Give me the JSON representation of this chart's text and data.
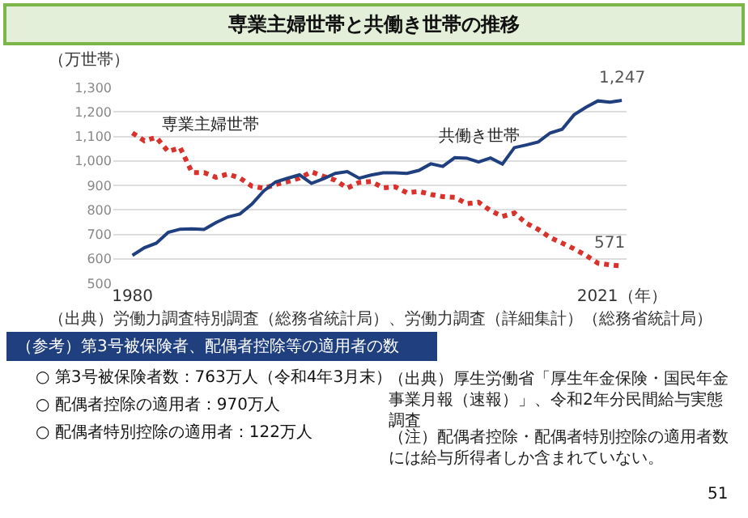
{
  "chart_data": {
    "type": "line",
    "title": "専業主婦世帯と共働き世帯の推移",
    "ylabel": "（万世帯）",
    "x": [
      1980,
      1981,
      1982,
      1983,
      1984,
      1985,
      1986,
      1987,
      1988,
      1989,
      1990,
      1991,
      1992,
      1993,
      1994,
      1995,
      1996,
      1997,
      1998,
      1999,
      2000,
      2001,
      2002,
      2003,
      2004,
      2005,
      2006,
      2007,
      2008,
      2009,
      2010,
      2011,
      2012,
      2013,
      2014,
      2015,
      2016,
      2017,
      2018,
      2019,
      2020,
      2021
    ],
    "series": [
      {
        "name": "専業主婦世帯",
        "color": "#d9312b",
        "line_style": "dotted",
        "values": [
          1114,
          1082,
          1096,
          1038,
          1054,
          952,
          952,
          933,
          946,
          930,
          897,
          888,
          903,
          915,
          930,
          955,
          937,
          921,
          889,
          912,
          916,
          890,
          894,
          870,
          875,
          863,
          854,
          851,
          825,
          831,
          797,
          773,
          787,
          745,
          720,
          687,
          664,
          641,
          614,
          582,
          575,
          571
        ],
        "value_labels": [
          null,
          null,
          null,
          null,
          null,
          null,
          null,
          null,
          null,
          null,
          null,
          null,
          null,
          null,
          null,
          null,
          null,
          null,
          null,
          null,
          null,
          null,
          null,
          null,
          null,
          null,
          null,
          null,
          null,
          null,
          null,
          null,
          null,
          null,
          null,
          null,
          null,
          null,
          null,
          null,
          null,
          "571"
        ]
      },
      {
        "name": "共働き世帯",
        "color": "#1f3f7f",
        "line_style": "solid",
        "values": [
          614,
          645,
          664,
          708,
          721,
          722,
          720,
          748,
          771,
          783,
          823,
          877,
          914,
          929,
          943,
          908,
          927,
          949,
          956,
          929,
          942,
          951,
          951,
          949,
          961,
          988,
          977,
          1013,
          1011,
          995,
          1012,
          987,
          1054,
          1065,
          1077,
          1114,
          1129,
          1188,
          1219,
          1245,
          1240,
          1247
        ],
        "value_labels": [
          null,
          null,
          null,
          null,
          null,
          null,
          null,
          null,
          null,
          null,
          null,
          null,
          null,
          null,
          null,
          null,
          null,
          null,
          null,
          null,
          null,
          null,
          null,
          null,
          null,
          null,
          null,
          null,
          null,
          null,
          null,
          null,
          null,
          null,
          null,
          null,
          null,
          null,
          null,
          null,
          null,
          "1,247"
        ]
      }
    ],
    "xlim": [
      1978.4,
      2021.4
    ],
    "xticks": [
      1980,
      {
        "value": 2021,
        "label": "2021（年）"
      }
    ],
    "ylim": [
      500,
      1300
    ],
    "yticks": [
      500,
      600,
      700,
      800,
      900,
      {
        "value": 1000,
        "label": "1,000"
      },
      {
        "value": 1100,
        "label": "1,100"
      },
      {
        "value": 1200,
        "label": "1,200"
      },
      {
        "value": 1300,
        "label": "1,300"
      }
    ],
    "grid": "y",
    "legend": false,
    "marker": "none",
    "annotations": [
      "（出典）労働力調査特別調査（総務省統計局）、労働力調査（詳細集計）（総務省統計局）",
      "（参考）第3号被保険者、配偶者控除等の適用者の数",
      "○ 第3号被保険者数：763万人（令和4年3月末）",
      "○ 配偶者控除の適用者：970万人",
      "○ 配偶者特別控除の適用者：122万人",
      "（出典）厚生労働省「厚生年金保険・国民年金事業月報（速報）」、令和2年分民間給与実態調査",
      "（注）配偶者控除・配偶者特別控除の適用者数には給与所得者しか含まれていない。",
      "51"
    ]
  }
}
